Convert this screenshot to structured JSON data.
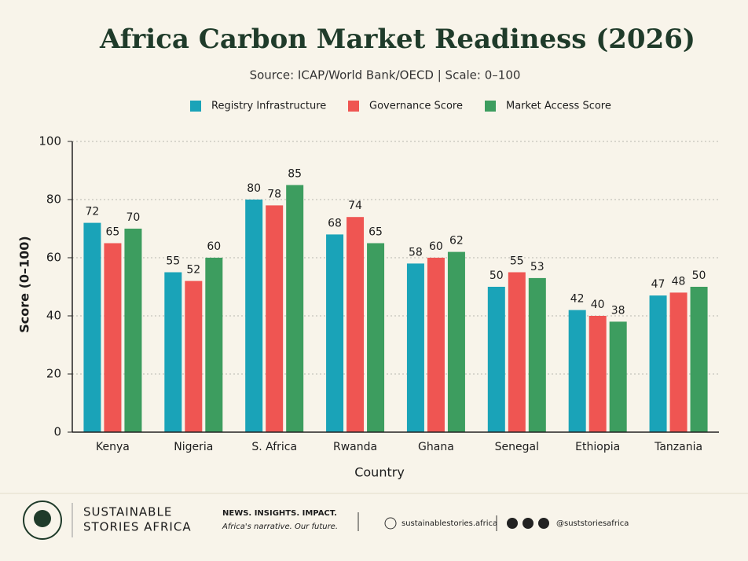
{
  "chart_data": {
    "type": "bar",
    "title": "Africa Carbon Market Readiness (2026)",
    "subtitle": "Source: ICAP/World Bank/OECD  |  Scale: 0–100",
    "x_label": "Country",
    "y_label": "Score (0–100)",
    "categories": [
      "Kenya",
      "Nigeria",
      "S. Africa",
      "Rwanda",
      "Ghana",
      "Senegal",
      "Ethiopia",
      "Tanzania"
    ],
    "series": [
      {
        "name": "Registry Infrastructure",
        "color": "#1aa3b8",
        "values": [
          72,
          55,
          80,
          68,
          58,
          50,
          42,
          47
        ]
      },
      {
        "name": "Governance Score",
        "color": "#ef5552",
        "values": [
          65,
          52,
          78,
          74,
          60,
          55,
          40,
          48
        ]
      },
      {
        "name": "Market Access Score",
        "color": "#3d9d5f",
        "values": [
          70,
          60,
          85,
          65,
          62,
          53,
          38,
          50
        ]
      }
    ],
    "ylim": [
      0,
      100
    ],
    "yticks": [
      0,
      20,
      40,
      60,
      80,
      100
    ],
    "grid": true
  },
  "footer": {
    "brand_line1": "SUSTAINABLE",
    "brand_line2": "STORIES AFRICA",
    "tagline": "NEWS. INSIGHTS. IMPACT.",
    "slogan": "Africa's narrative. Our future.",
    "website": "sustainablestories.africa",
    "handle": "@suststoriesafrica"
  }
}
